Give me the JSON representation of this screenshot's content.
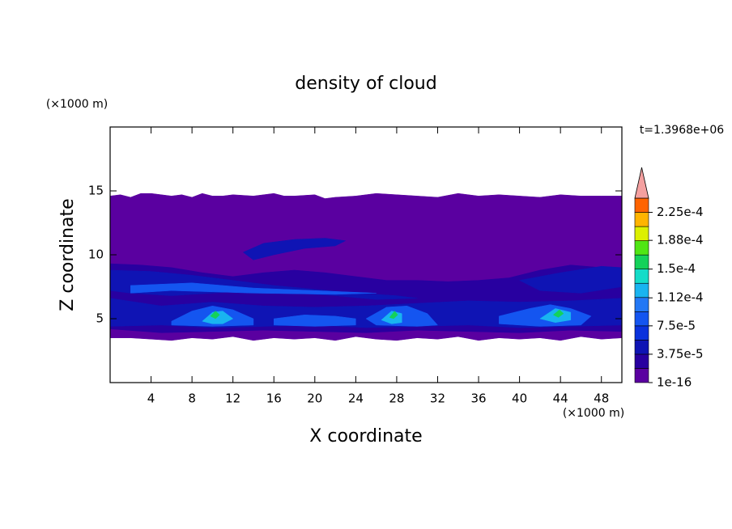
{
  "chart_data": {
    "type": "contour",
    "title": "density of cloud",
    "x_label": "X coordinate",
    "y_label": "Z coordinate",
    "x_unit": "(×1000 m)",
    "y_unit": "(×1000 m)",
    "annotation": "t=1.3968e+06",
    "xlim": [
      0,
      50
    ],
    "ylim": [
      0,
      20
    ],
    "xticks": [
      4,
      8,
      12,
      16,
      20,
      24,
      28,
      32,
      36,
      40,
      44,
      48
    ],
    "yticks": [
      5,
      10,
      15
    ],
    "colorbar": {
      "levels": [
        1e-16,
        1.875e-05,
        3.75e-05,
        5.625e-05,
        7.5e-05,
        9.375e-05,
        0.0001125,
        0.00013125,
        0.00015,
        0.00016875,
        0.0001875,
        0.00020625,
        0.000225,
        0.00024375
      ],
      "colors": [
        "#5a00a0",
        "#2800a0",
        "#0f14b4",
        "#0a32dc",
        "#1455f0",
        "#2378f5",
        "#19b4f0",
        "#14dcc8",
        "#14d25a",
        "#50e614",
        "#dcf000",
        "#ffb400",
        "#ff6400"
      ],
      "over_color": "#f4a0a0",
      "ticks": [
        {
          "value": 1e-16,
          "label": "1e-16"
        },
        {
          "value": 3.75e-05,
          "label": "3.75e-5"
        },
        {
          "value": 7.5e-05,
          "label": "7.5e-5"
        },
        {
          "value": 0.000112,
          "label": "1.12e-4"
        },
        {
          "value": 0.00015,
          "label": "1.5e-4"
        },
        {
          "value": 0.000188,
          "label": "1.88e-4"
        },
        {
          "value": 0.000225,
          "label": "2.25e-4"
        }
      ]
    },
    "regions": [
      {
        "level": 1e-16,
        "x": [
          0,
          1,
          2,
          3,
          4,
          6,
          7,
          8,
          9,
          10,
          11,
          12,
          14,
          16,
          17,
          18,
          20,
          21,
          22,
          24,
          26,
          28,
          30,
          32,
          34,
          36,
          38,
          40,
          42,
          44,
          46,
          48,
          50,
          50,
          48,
          46,
          44,
          42,
          40,
          38,
          36,
          34,
          32,
          30,
          28,
          26,
          24,
          22,
          20,
          18,
          16,
          14,
          12,
          10,
          8,
          6,
          4,
          2,
          0
        ],
        "z": [
          14.6,
          14.7,
          14.5,
          14.8,
          14.8,
          14.6,
          14.7,
          14.5,
          14.8,
          14.6,
          14.6,
          14.7,
          14.6,
          14.8,
          14.6,
          14.6,
          14.7,
          14.4,
          14.5,
          14.6,
          14.8,
          14.7,
          14.6,
          14.5,
          14.8,
          14.6,
          14.7,
          14.6,
          14.5,
          14.7,
          14.6,
          14.6,
          14.6,
          3.5,
          3.4,
          3.6,
          3.3,
          3.5,
          3.4,
          3.5,
          3.3,
          3.6,
          3.4,
          3.5,
          3.3,
          3.4,
          3.6,
          3.3,
          3.5,
          3.4,
          3.5,
          3.3,
          3.6,
          3.4,
          3.5,
          3.3,
          3.4,
          3.5,
          3.5
        ]
      },
      {
        "level": 1.875e-05,
        "x": [
          0,
          3,
          6,
          9,
          12,
          15,
          18,
          21,
          24,
          27,
          30,
          33,
          36,
          39,
          42,
          45,
          48,
          50,
          50,
          45,
          40,
          35,
          30,
          25,
          20,
          15,
          10,
          5,
          0
        ],
        "z": [
          9.3,
          9.2,
          9,
          8.6,
          8.3,
          8.6,
          8.8,
          8.6,
          8.3,
          8.0,
          8.0,
          7.9,
          8.0,
          8.2,
          8.8,
          9.2,
          9.0,
          9.0,
          4.0,
          4.1,
          3.9,
          4.0,
          4.1,
          3.9,
          4.0,
          4.1,
          4.0,
          3.9,
          4.2
        ]
      },
      {
        "level": 3.75e-05,
        "x": [
          0,
          4,
          8,
          12,
          16,
          20,
          24,
          28,
          30,
          26,
          22,
          18,
          14,
          10,
          6,
          2,
          0
        ],
        "z": [
          8.8,
          8.7,
          8.4,
          8.0,
          7.6,
          7.3,
          7.0,
          6.8,
          6.6,
          6.5,
          6.8,
          7.0,
          7.2,
          7.0,
          6.8,
          7.0,
          7.2
        ]
      },
      {
        "level": 3.75e-05,
        "x": [
          0,
          5,
          10,
          15,
          20,
          25,
          30,
          35,
          40,
          45,
          50,
          50,
          45,
          40,
          35,
          30,
          25,
          20,
          15,
          10,
          5,
          0
        ],
        "z": [
          6.6,
          6.0,
          6.3,
          6.0,
          5.9,
          6.0,
          6.2,
          6.4,
          6.3,
          6.4,
          6.6,
          4.5,
          4.4,
          4.3,
          4.5,
          4.4,
          4.3,
          4.5,
          4.4,
          4.3,
          4.5,
          4.4
        ]
      },
      {
        "level": 3.75e-05,
        "x": [
          40,
          44,
          48,
          50,
          50,
          46,
          42
        ],
        "z": [
          8.0,
          8.6,
          9.1,
          9.0,
          7.5,
          7.0,
          7.2
        ]
      },
      {
        "level": 3.75e-05,
        "x": [
          13,
          15,
          18,
          21,
          23,
          22,
          19,
          16,
          14
        ],
        "z": [
          10.2,
          10.9,
          11.2,
          11.3,
          11.1,
          10.7,
          10.5,
          10.0,
          9.6
        ]
      },
      {
        "level": 7.5e-05,
        "x": [
          2,
          8,
          14,
          20,
          26,
          22,
          14,
          6,
          2
        ],
        "z": [
          7.6,
          7.8,
          7.4,
          7.2,
          7.0,
          6.9,
          7.0,
          7.2,
          7.0
        ]
      },
      {
        "level": 7.5e-05,
        "x": [
          6,
          8,
          10,
          12,
          14,
          14,
          10,
          6
        ],
        "z": [
          4.8,
          5.6,
          6.0,
          5.7,
          5.0,
          4.5,
          4.4,
          4.5
        ]
      },
      {
        "level": 7.5e-05,
        "x": [
          16,
          19,
          22,
          24,
          24,
          20,
          16
        ],
        "z": [
          5.0,
          5.3,
          5.2,
          5.0,
          4.5,
          4.4,
          4.5
        ]
      },
      {
        "level": 7.5e-05,
        "x": [
          25,
          27,
          29,
          31,
          32,
          30,
          26
        ],
        "z": [
          5.0,
          5.9,
          6.0,
          5.4,
          4.5,
          4.4,
          4.5
        ]
      },
      {
        "level": 7.5e-05,
        "x": [
          38,
          41,
          43,
          45,
          47,
          46,
          42,
          38
        ],
        "z": [
          5.2,
          5.8,
          6.1,
          5.8,
          5.2,
          4.5,
          4.4,
          4.6
        ]
      },
      {
        "level": 0.0001125,
        "x": [
          9,
          10,
          11,
          12,
          11,
          10
        ],
        "z": [
          4.8,
          5.5,
          5.6,
          5.0,
          4.6,
          4.6
        ]
      },
      {
        "level": 0.0001125,
        "x": [
          26.5,
          27.5,
          28.5,
          28.5,
          27.5
        ],
        "z": [
          4.9,
          5.6,
          5.4,
          4.7,
          4.6
        ]
      },
      {
        "level": 0.0001125,
        "x": [
          42,
          43.5,
          45,
          45,
          43.5
        ],
        "z": [
          5.0,
          5.8,
          5.5,
          4.9,
          4.7
        ]
      },
      {
        "level": 0.00015,
        "x": [
          9.8,
          10.3,
          10.7,
          10.3
        ],
        "z": [
          5.2,
          5.6,
          5.3,
          5.0
        ]
      },
      {
        "level": 0.00015,
        "x": [
          27.3,
          27.8,
          28.1,
          27.7
        ],
        "z": [
          5.1,
          5.6,
          5.3,
          5.0
        ]
      },
      {
        "level": 0.00015,
        "x": [
          43.3,
          43.9,
          44.3,
          43.8
        ],
        "z": [
          5.3,
          5.7,
          5.4,
          5.1
        ]
      }
    ]
  }
}
